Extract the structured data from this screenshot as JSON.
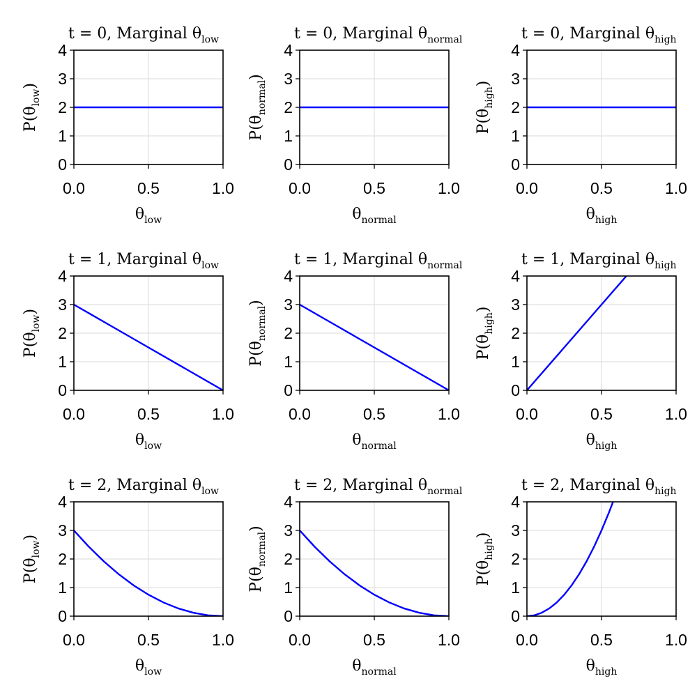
{
  "chart_data": [
    {
      "type": "line",
      "title": {
        "prefix": "t = 0, Marginal θ",
        "sub": "low"
      },
      "xlabel": {
        "base": "θ",
        "sub": "low"
      },
      "ylabel": {
        "base": "P(θ",
        "sub": "low",
        "suffix": ")"
      },
      "xlim": [
        0,
        1
      ],
      "ylim": [
        0,
        4
      ],
      "xticks": [
        "0.0",
        "0.5",
        "1.0"
      ],
      "yticks": [
        "0",
        "1",
        "2",
        "3",
        "4"
      ],
      "grid": true,
      "series": [
        {
          "color": "#0000ff",
          "x": [
            0,
            0.25,
            0.5,
            0.75,
            1
          ],
          "y": [
            2,
            2,
            2,
            2,
            2
          ]
        }
      ]
    },
    {
      "type": "line",
      "title": {
        "prefix": "t = 0, Marginal θ",
        "sub": "normal"
      },
      "xlabel": {
        "base": "θ",
        "sub": "normal"
      },
      "ylabel": {
        "base": "P(θ",
        "sub": "normal",
        "suffix": ")"
      },
      "xlim": [
        0,
        1
      ],
      "ylim": [
        0,
        4
      ],
      "xticks": [
        "0.0",
        "0.5",
        "1.0"
      ],
      "yticks": [
        "0",
        "1",
        "2",
        "3",
        "4"
      ],
      "grid": true,
      "series": [
        {
          "color": "#0000ff",
          "x": [
            0,
            0.25,
            0.5,
            0.75,
            1
          ],
          "y": [
            2,
            2,
            2,
            2,
            2
          ]
        }
      ]
    },
    {
      "type": "line",
      "title": {
        "prefix": "t = 0, Marginal θ",
        "sub": "high"
      },
      "xlabel": {
        "base": "θ",
        "sub": "high"
      },
      "ylabel": {
        "base": "P(θ",
        "sub": "high",
        "suffix": ")"
      },
      "xlim": [
        0,
        1
      ],
      "ylim": [
        0,
        4
      ],
      "xticks": [
        "0.0",
        "0.5",
        "1.0"
      ],
      "yticks": [
        "0",
        "1",
        "2",
        "3",
        "4"
      ],
      "grid": true,
      "series": [
        {
          "color": "#0000ff",
          "x": [
            0,
            0.25,
            0.5,
            0.75,
            1
          ],
          "y": [
            2,
            2,
            2,
            2,
            2
          ]
        }
      ]
    },
    {
      "type": "line",
      "title": {
        "prefix": "t = 1, Marginal θ",
        "sub": "low"
      },
      "xlabel": {
        "base": "θ",
        "sub": "low"
      },
      "ylabel": {
        "base": "P(θ",
        "sub": "low",
        "suffix": ")"
      },
      "xlim": [
        0,
        1
      ],
      "ylim": [
        0,
        4
      ],
      "xticks": [
        "0.0",
        "0.5",
        "1.0"
      ],
      "yticks": [
        "0",
        "1",
        "2",
        "3",
        "4"
      ],
      "grid": true,
      "series": [
        {
          "color": "#0000ff",
          "x": [
            0,
            0.25,
            0.5,
            0.75,
            1
          ],
          "y": [
            3,
            2.25,
            1.5,
            0.75,
            0
          ]
        }
      ]
    },
    {
      "type": "line",
      "title": {
        "prefix": "t = 1, Marginal θ",
        "sub": "normal"
      },
      "xlabel": {
        "base": "θ",
        "sub": "normal"
      },
      "ylabel": {
        "base": "P(θ",
        "sub": "normal",
        "suffix": ")"
      },
      "xlim": [
        0,
        1
      ],
      "ylim": [
        0,
        4
      ],
      "xticks": [
        "0.0",
        "0.5",
        "1.0"
      ],
      "yticks": [
        "0",
        "1",
        "2",
        "3",
        "4"
      ],
      "grid": true,
      "series": [
        {
          "color": "#0000ff",
          "x": [
            0,
            0.25,
            0.5,
            0.75,
            1
          ],
          "y": [
            3,
            2.25,
            1.5,
            0.75,
            0
          ]
        }
      ]
    },
    {
      "type": "line",
      "title": {
        "prefix": "t = 1, Marginal θ",
        "sub": "high"
      },
      "xlabel": {
        "base": "θ",
        "sub": "high"
      },
      "ylabel": {
        "base": "P(θ",
        "sub": "high",
        "suffix": ")"
      },
      "xlim": [
        0,
        1
      ],
      "ylim": [
        0,
        4
      ],
      "xticks": [
        "0.0",
        "0.5",
        "1.0"
      ],
      "yticks": [
        "0",
        "1",
        "2",
        "3",
        "4"
      ],
      "grid": true,
      "series": [
        {
          "color": "#0000ff",
          "x": [
            0,
            0.25,
            0.5,
            0.6667
          ],
          "y": [
            0,
            1.5,
            3,
            4
          ]
        }
      ]
    },
    {
      "type": "line",
      "title": {
        "prefix": "t = 2, Marginal θ",
        "sub": "low"
      },
      "xlabel": {
        "base": "θ",
        "sub": "low"
      },
      "ylabel": {
        "base": "P(θ",
        "sub": "low",
        "suffix": ")"
      },
      "xlim": [
        0,
        1
      ],
      "ylim": [
        0,
        4
      ],
      "xticks": [
        "0.0",
        "0.5",
        "1.0"
      ],
      "yticks": [
        "0",
        "1",
        "2",
        "3",
        "4"
      ],
      "grid": true,
      "series": [
        {
          "color": "#0000ff",
          "x": [
            0,
            0.1,
            0.2,
            0.3,
            0.4,
            0.5,
            0.6,
            0.7,
            0.8,
            0.9,
            1
          ],
          "y": [
            3,
            2.43,
            1.92,
            1.47,
            1.08,
            0.75,
            0.48,
            0.27,
            0.12,
            0.03,
            0
          ]
        }
      ]
    },
    {
      "type": "line",
      "title": {
        "prefix": "t = 2, Marginal θ",
        "sub": "normal"
      },
      "xlabel": {
        "base": "θ",
        "sub": "normal"
      },
      "ylabel": {
        "base": "P(θ",
        "sub": "normal",
        "suffix": ")"
      },
      "xlim": [
        0,
        1
      ],
      "ylim": [
        0,
        4
      ],
      "xticks": [
        "0.0",
        "0.5",
        "1.0"
      ],
      "yticks": [
        "0",
        "1",
        "2",
        "3",
        "4"
      ],
      "grid": true,
      "series": [
        {
          "color": "#0000ff",
          "x": [
            0,
            0.1,
            0.2,
            0.3,
            0.4,
            0.5,
            0.6,
            0.7,
            0.8,
            0.9,
            1
          ],
          "y": [
            3,
            2.43,
            1.92,
            1.47,
            1.08,
            0.75,
            0.48,
            0.27,
            0.12,
            0.03,
            0
          ]
        }
      ]
    },
    {
      "type": "line",
      "title": {
        "prefix": "t = 2, Marginal θ",
        "sub": "high"
      },
      "xlabel": {
        "base": "θ",
        "sub": "high"
      },
      "ylabel": {
        "base": "P(θ",
        "sub": "high",
        "suffix": ")"
      },
      "xlim": [
        0,
        1
      ],
      "ylim": [
        0,
        4
      ],
      "xticks": [
        "0.0",
        "0.5",
        "1.0"
      ],
      "yticks": [
        "0",
        "1",
        "2",
        "3",
        "4"
      ],
      "grid": true,
      "series": [
        {
          "color": "#0000ff",
          "x": [
            0,
            0.05,
            0.1,
            0.15,
            0.2,
            0.25,
            0.3,
            0.35,
            0.4,
            0.45,
            0.5,
            0.55,
            0.5774
          ],
          "y": [
            0,
            0.03,
            0.12,
            0.27,
            0.48,
            0.75,
            1.08,
            1.47,
            1.92,
            2.43,
            3,
            3.63,
            4
          ]
        }
      ]
    }
  ]
}
